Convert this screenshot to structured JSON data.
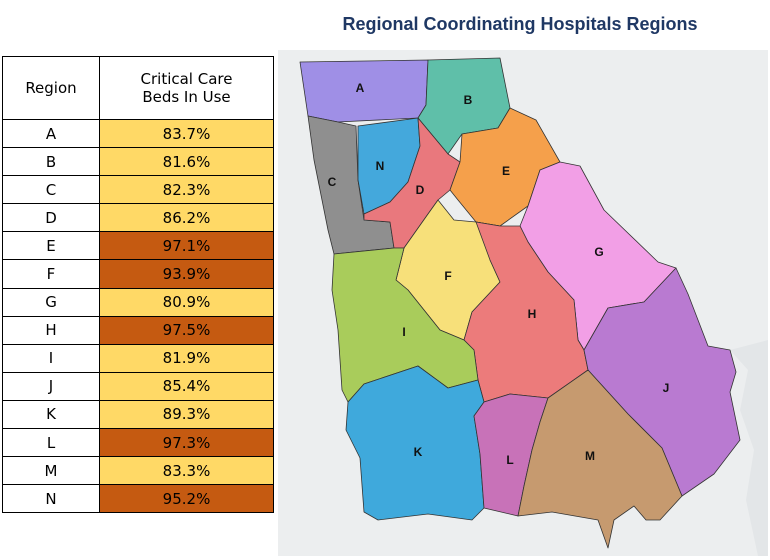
{
  "map_title": "Regional Coordinating Hospitals Regions",
  "table": {
    "header_region": "Region",
    "header_beds_line1": "Critical Care",
    "header_beds_line2": "Beds In Use",
    "rows": [
      {
        "region": "A",
        "value": "83.7%",
        "level": "normal"
      },
      {
        "region": "B",
        "value": "81.6%",
        "level": "normal"
      },
      {
        "region": "C",
        "value": "82.3%",
        "level": "normal"
      },
      {
        "region": "D",
        "value": "86.2%",
        "level": "normal"
      },
      {
        "region": "E",
        "value": "97.1%",
        "level": "high"
      },
      {
        "region": "F",
        "value": "93.9%",
        "level": "high"
      },
      {
        "region": "G",
        "value": "80.9%",
        "level": "normal"
      },
      {
        "region": "H",
        "value": "97.5%",
        "level": "high"
      },
      {
        "region": "I",
        "value": "81.9%",
        "level": "normal"
      },
      {
        "region": "J",
        "value": "85.4%",
        "level": "normal"
      },
      {
        "region": "K",
        "value": "89.3%",
        "level": "normal"
      },
      {
        "region": "L",
        "value": "97.3%",
        "level": "high"
      },
      {
        "region": "M",
        "value": "83.3%",
        "level": "normal"
      },
      {
        "region": "N",
        "value": "95.2%",
        "level": "high"
      }
    ]
  },
  "colors": {
    "normal": "#ffd966",
    "high": "#c55a11",
    "title": "#1f3864",
    "region_A": "#9f8fe6",
    "region_B": "#5fbfa9",
    "region_C": "#8f8f8f",
    "region_D": "#e9787d",
    "region_E": "#f5a04b",
    "region_F": "#f7e07a",
    "region_G": "#f29fe6",
    "region_H": "#ec7b7b",
    "region_I": "#a9cc5b",
    "region_J": "#b97ad1",
    "region_K": "#3fa9dc",
    "region_L": "#c872b8",
    "region_M": "#c69a6f",
    "region_N": "#44a8dc"
  },
  "map_region_labels": [
    "A",
    "B",
    "C",
    "D",
    "E",
    "F",
    "G",
    "H",
    "I",
    "J",
    "K",
    "L",
    "M",
    "N"
  ]
}
